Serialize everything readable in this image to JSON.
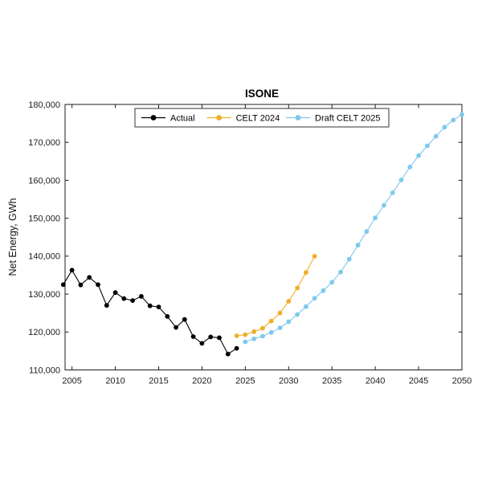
{
  "figure": {
    "background": "#ffffff",
    "axis_color": "#1c1c1c"
  },
  "chart_data": {
    "type": "line",
    "title": "ISONE",
    "xlabel": "",
    "ylabel": "Net Energy, GWh",
    "xlim": [
      2004.2,
      2050
    ],
    "ylim": [
      110000,
      180000
    ],
    "x_ticks": [
      2005,
      2010,
      2015,
      2020,
      2025,
      2030,
      2035,
      2040,
      2045,
      2050
    ],
    "y_ticks": [
      110000,
      120000,
      130000,
      140000,
      150000,
      160000,
      170000,
      180000
    ],
    "grid": false,
    "legend_position": "north-inside",
    "series": [
      {
        "name": "Actual",
        "color": "#000000",
        "x": [
          2004,
          2005,
          2006,
          2007,
          2008,
          2009,
          2010,
          2011,
          2012,
          2013,
          2014,
          2015,
          2016,
          2017,
          2018,
          2019,
          2020,
          2021,
          2022,
          2023,
          2024
        ],
        "values": [
          132500,
          136300,
          132400,
          134400,
          132500,
          127000,
          130400,
          128800,
          128300,
          129400,
          126900,
          126600,
          124100,
          121200,
          123300,
          118800,
          117000,
          118700,
          118500,
          114200,
          115700
        ]
      },
      {
        "name": "CELT 2024",
        "color": "#F0AE26",
        "x": [
          2024,
          2025,
          2026,
          2027,
          2028,
          2029,
          2030,
          2031,
          2032,
          2033
        ],
        "values": [
          119000,
          119300,
          120100,
          121000,
          122900,
          125000,
          128100,
          131600,
          135700,
          140000
        ]
      },
      {
        "name": "Draft CELT 2025",
        "color": "#7EC9EC",
        "x": [
          2025,
          2026,
          2027,
          2028,
          2029,
          2030,
          2031,
          2032,
          2033,
          2034,
          2035,
          2036,
          2037,
          2038,
          2039,
          2040,
          2041,
          2042,
          2043,
          2044,
          2045,
          2046,
          2047,
          2048,
          2049,
          2050
        ],
        "values": [
          117400,
          118200,
          118900,
          119900,
          121100,
          122700,
          124600,
          126700,
          128900,
          130900,
          133100,
          135800,
          139200,
          142900,
          146500,
          150100,
          153400,
          156700,
          160100,
          163500,
          166500,
          169100,
          171600,
          174000,
          175900,
          177300
        ]
      }
    ]
  }
}
